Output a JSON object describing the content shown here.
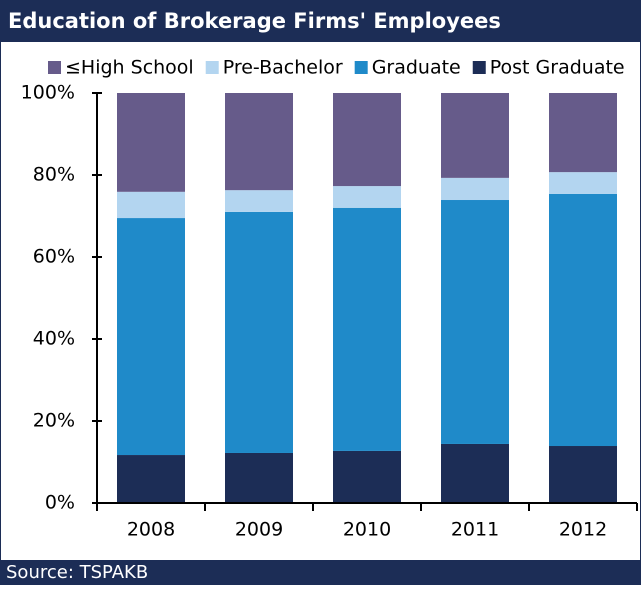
{
  "chart_data": {
    "type": "stacked_bar",
    "title": "Education of Brokerage Firms' Employees",
    "source": "Source: TSPAKB",
    "categories": [
      "2008",
      "2009",
      "2010",
      "2011",
      "2012"
    ],
    "series": [
      {
        "name": "≤High School",
        "color": "#665b8a",
        "values": [
          24.1,
          23.7,
          22.7,
          20.7,
          19.3
        ]
      },
      {
        "name": "Pre-Bachelor",
        "color": "#b3d5f0",
        "values": [
          6.4,
          5.3,
          5.3,
          5.4,
          5.3
        ]
      },
      {
        "name": "Graduate",
        "color": "#1f8ac9",
        "values": [
          57.8,
          58.8,
          59.3,
          59.5,
          61.5
        ]
      },
      {
        "name": "Post Graduate",
        "color": "#1c2d56",
        "values": [
          11.7,
          12.2,
          12.7,
          14.4,
          13.9
        ]
      }
    ],
    "ylim": [
      0,
      100
    ],
    "yticks": [
      {
        "value": 0,
        "label": "0%"
      },
      {
        "value": 20,
        "label": "20%"
      },
      {
        "value": 40,
        "label": "40%"
      },
      {
        "value": 60,
        "label": "60%"
      },
      {
        "value": 80,
        "label": "80%"
      },
      {
        "value": 100,
        "label": "100%"
      }
    ],
    "grid": false,
    "legend": "top"
  }
}
